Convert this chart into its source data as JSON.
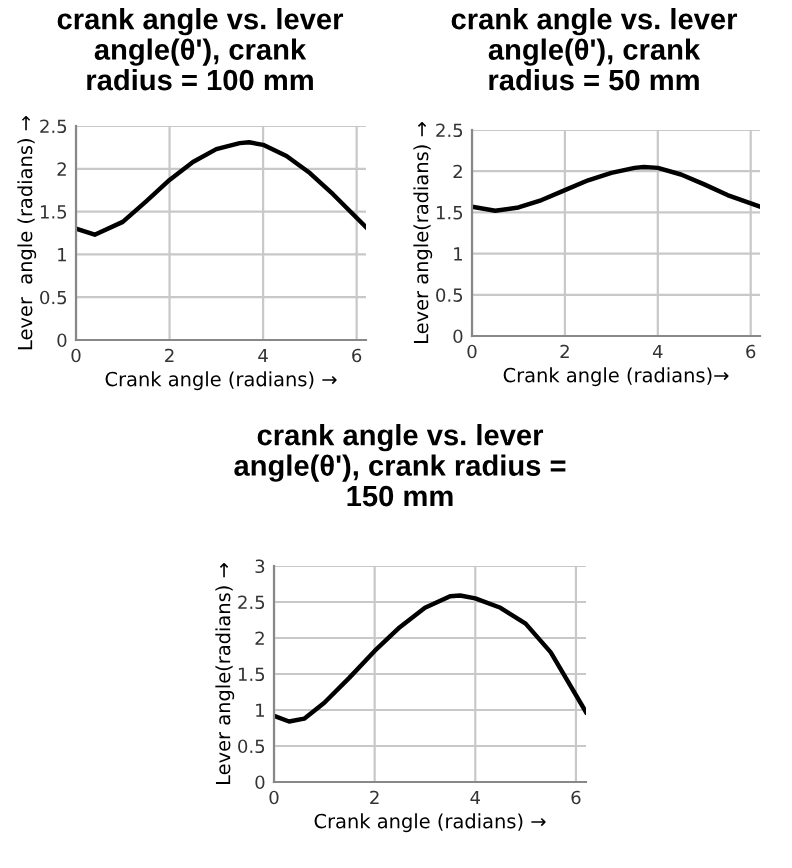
{
  "chart_data": [
    {
      "type": "line",
      "title": "crank angle vs. lever\nangle(θ'), crank\nradius = 100 mm",
      "xlabel": "Crank angle (radians) →",
      "ylabel": "Lever  angle (radians) →",
      "xlim": [
        0,
        6.2
      ],
      "xticks": [
        0,
        2,
        4,
        6
      ],
      "ylim": [
        0,
        2.5
      ],
      "yticks": [
        0,
        0.5,
        1,
        1.5,
        2,
        2.5
      ],
      "grid": true,
      "legend": false,
      "series": [
        {
          "color": "#000000",
          "x": [
            0,
            0.4,
            1,
            1.5,
            2,
            2.5,
            3,
            3.5,
            3.7,
            4,
            4.5,
            5,
            5.5,
            6.2
          ],
          "values": [
            1.3,
            1.23,
            1.38,
            1.62,
            1.87,
            2.08,
            2.23,
            2.3,
            2.31,
            2.28,
            2.15,
            1.95,
            1.7,
            1.32
          ]
        }
      ]
    },
    {
      "type": "line",
      "title": "crank angle vs. lever\nangle(θ'), crank\nradius = 50 mm",
      "xlabel": "Crank angle (radians)→",
      "ylabel": "Lever angle(radians) →",
      "xlim": [
        0,
        6.2
      ],
      "xticks": [
        0,
        2,
        4,
        6
      ],
      "ylim": [
        0,
        2.5
      ],
      "yticks": [
        0,
        0.5,
        1,
        1.5,
        2,
        2.5
      ],
      "grid": true,
      "legend": false,
      "series": [
        {
          "color": "#000000",
          "x": [
            0,
            0.5,
            1,
            1.5,
            2,
            2.5,
            3,
            3.5,
            3.7,
            4,
            4.5,
            5,
            5.5,
            6.2
          ],
          "values": [
            1.57,
            1.52,
            1.56,
            1.65,
            1.77,
            1.89,
            1.98,
            2.04,
            2.05,
            2.04,
            1.96,
            1.84,
            1.71,
            1.57
          ]
        }
      ]
    },
    {
      "type": "line",
      "title": "crank angle vs. lever\nangle(θ'), crank radius =\n150 mm",
      "xlabel": "Crank angle (radians) →",
      "ylabel": "Lever angle(radians) →",
      "xlim": [
        0,
        6.2
      ],
      "xticks": [
        0,
        2,
        4,
        6
      ],
      "ylim": [
        0,
        3
      ],
      "yticks": [
        0,
        0.5,
        1,
        1.5,
        2,
        2.5,
        3
      ],
      "grid": true,
      "legend": false,
      "series": [
        {
          "color": "#000000",
          "x": [
            0,
            0.3,
            0.6,
            1,
            1.5,
            2,
            2.5,
            3,
            3.5,
            3.7,
            4,
            4.5,
            5,
            5.5,
            6.2
          ],
          "values": [
            0.92,
            0.84,
            0.88,
            1.1,
            1.45,
            1.82,
            2.15,
            2.42,
            2.58,
            2.59,
            2.55,
            2.42,
            2.2,
            1.8,
            0.97
          ]
        }
      ]
    }
  ]
}
